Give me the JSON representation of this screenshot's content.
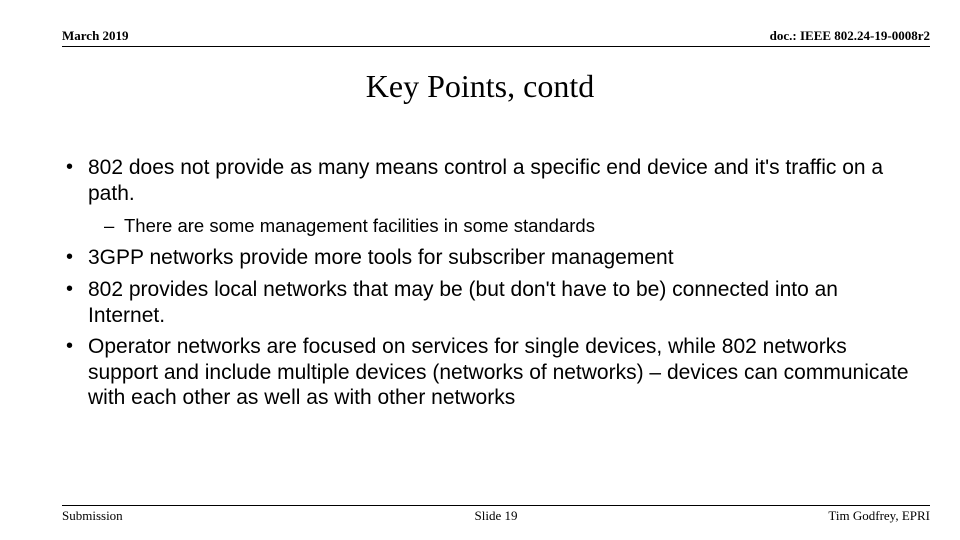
{
  "header": {
    "left": "March 2019",
    "right": "doc.: IEEE 802.24-19-0008r2"
  },
  "title": "Key Points, contd",
  "bullets": [
    {
      "level": 1,
      "text": "802 does not provide as many means control a specific end device and it's traffic on a path."
    },
    {
      "level": 2,
      "text": "There are some management facilities in some standards"
    },
    {
      "level": 1,
      "text": "3GPP networks provide more tools for subscriber management"
    },
    {
      "level": 1,
      "text": "802 provides local networks that may be (but don't have to be) connected into an Internet."
    },
    {
      "level": 1,
      "text": "Operator networks are focused on services for single devices, while 802 networks support and include multiple devices (networks of networks) – devices can communicate with each other as well as with other networks"
    }
  ],
  "footer": {
    "left": "Submission",
    "center": "Slide 19",
    "right": "Tim Godfrey, EPRI"
  }
}
